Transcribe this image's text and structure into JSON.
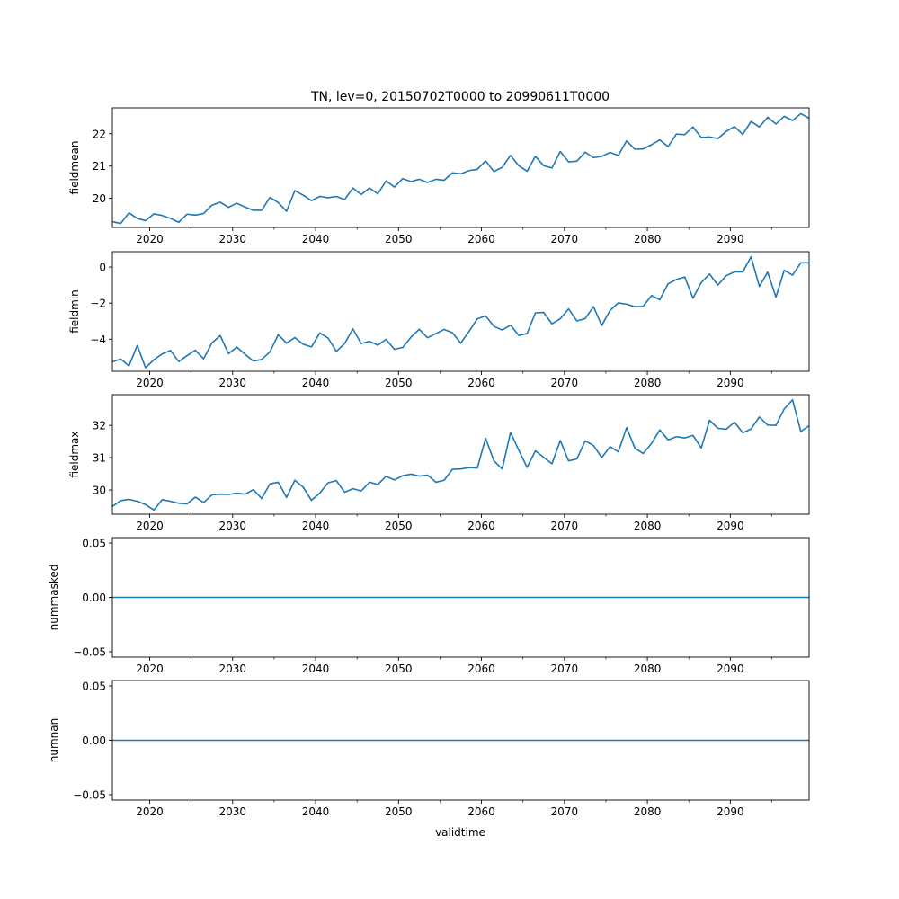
{
  "title": "TN, lev=0, 20150702T0000 to 20990611T0000",
  "xlabel": "validtime",
  "colors": {
    "line": "#1f77b4",
    "axis": "#000000",
    "background": "#ffffff"
  },
  "chart_data": [
    {
      "type": "line",
      "ylabel": "fieldmean",
      "xlim": [
        2015.5,
        2099.5
      ],
      "ylim": [
        19.1,
        22.8
      ],
      "xticks": [
        2020,
        2030,
        2040,
        2050,
        2060,
        2070,
        2080,
        2090
      ],
      "xticklabels": [
        "2020",
        "2030",
        "2040",
        "2050",
        "2060",
        "2070",
        "2080",
        "2090"
      ],
      "yticks": [
        20,
        21,
        22
      ],
      "yticklabels": [
        "20",
        "21",
        "22"
      ],
      "x_start": 2015.5,
      "values": [
        19.28,
        19.22,
        19.55,
        19.38,
        19.31,
        19.52,
        19.47,
        19.38,
        19.26,
        19.51,
        19.48,
        19.53,
        19.79,
        19.88,
        19.72,
        19.85,
        19.73,
        19.63,
        19.63,
        20.03,
        19.87,
        19.6,
        20.24,
        20.1,
        19.93,
        20.06,
        20.02,
        20.06,
        19.96,
        20.32,
        20.12,
        20.32,
        20.14,
        20.54,
        20.35,
        20.61,
        20.52,
        20.59,
        20.49,
        20.59,
        20.56,
        20.79,
        20.76,
        20.86,
        20.9,
        21.16,
        20.83,
        20.96,
        21.33,
        21.01,
        20.84,
        21.3,
        21.01,
        20.94,
        21.45,
        21.13,
        21.15,
        21.43,
        21.26,
        21.3,
        21.42,
        21.33,
        21.78,
        21.52,
        21.53,
        21.66,
        21.81,
        21.6,
        21.99,
        21.97,
        22.21,
        21.88,
        21.9,
        21.85,
        22.07,
        22.22,
        21.98,
        22.38,
        22.21,
        22.51,
        22.3,
        22.54,
        22.41,
        22.62,
        22.48
      ]
    },
    {
      "type": "line",
      "ylabel": "fieldmin",
      "xlim": [
        2015.5,
        2099.5
      ],
      "ylim": [
        -5.78,
        0.85
      ],
      "xticks": [
        2020,
        2030,
        2040,
        2050,
        2060,
        2070,
        2080,
        2090
      ],
      "xticklabels": [
        "2020",
        "2030",
        "2040",
        "2050",
        "2060",
        "2070",
        "2080",
        "2090"
      ],
      "yticks": [
        -4,
        -2,
        0
      ],
      "yticklabels": [
        "−4",
        "−2",
        "0"
      ],
      "x_start": 2015.5,
      "values": [
        -5.26,
        -5.1,
        -5.48,
        -4.35,
        -5.58,
        -5.14,
        -4.82,
        -4.62,
        -5.24,
        -4.91,
        -4.61,
        -5.09,
        -4.21,
        -3.8,
        -4.8,
        -4.44,
        -4.84,
        -5.21,
        -5.13,
        -4.7,
        -3.75,
        -4.22,
        -3.91,
        -4.28,
        -4.43,
        -3.66,
        -3.93,
        -4.68,
        -4.24,
        -3.43,
        -4.24,
        -4.12,
        -4.33,
        -4.01,
        -4.56,
        -4.46,
        -3.89,
        -3.45,
        -3.92,
        -3.69,
        -3.46,
        -3.64,
        -4.22,
        -3.57,
        -2.87,
        -2.71,
        -3.29,
        -3.49,
        -3.22,
        -3.79,
        -3.69,
        -2.54,
        -2.52,
        -3.15,
        -2.87,
        -2.32,
        -2.99,
        -2.86,
        -2.2,
        -3.24,
        -2.41,
        -1.99,
        -2.06,
        -2.2,
        -2.18,
        -1.58,
        -1.81,
        -0.93,
        -0.69,
        -0.55,
        -1.73,
        -0.86,
        -0.39,
        -1.0,
        -0.48,
        -0.27,
        -0.27,
        0.57,
        -1.08,
        -0.28,
        -1.67,
        -0.18,
        -0.45,
        0.24,
        0.23
      ]
    },
    {
      "type": "line",
      "ylabel": "fieldmax",
      "xlim": [
        2015.5,
        2099.5
      ],
      "ylim": [
        29.25,
        32.95
      ],
      "xticks": [
        2020,
        2030,
        2040,
        2050,
        2060,
        2070,
        2080,
        2090
      ],
      "xticklabels": [
        "2020",
        "2030",
        "2040",
        "2050",
        "2060",
        "2070",
        "2080",
        "2090"
      ],
      "yticks": [
        30,
        31,
        32
      ],
      "yticklabels": [
        "30",
        "31",
        "32"
      ],
      "x_start": 2015.5,
      "values": [
        29.49,
        29.67,
        29.71,
        29.65,
        29.55,
        29.38,
        29.7,
        29.65,
        29.59,
        29.57,
        29.78,
        29.61,
        29.85,
        29.87,
        29.86,
        29.9,
        29.87,
        30.01,
        29.74,
        30.19,
        30.24,
        29.77,
        30.3,
        30.09,
        29.68,
        29.9,
        30.22,
        30.29,
        29.93,
        30.04,
        29.97,
        30.24,
        30.17,
        30.42,
        30.31,
        30.44,
        30.49,
        30.43,
        30.46,
        30.24,
        30.3,
        30.64,
        30.65,
        30.69,
        30.68,
        31.6,
        30.9,
        30.65,
        31.78,
        31.23,
        30.7,
        31.21,
        31.01,
        30.81,
        31.53,
        30.9,
        30.96,
        31.52,
        31.38,
        31.0,
        31.34,
        31.18,
        31.93,
        31.29,
        31.13,
        31.44,
        31.86,
        31.55,
        31.65,
        31.61,
        31.69,
        31.3,
        32.16,
        31.91,
        31.88,
        32.1,
        31.77,
        31.89,
        32.26,
        32.01,
        32.0,
        32.51,
        32.79,
        31.81,
        31.99
      ]
    },
    {
      "type": "line",
      "ylabel": "nummasked",
      "xlim": [
        2015.5,
        2099.5
      ],
      "ylim": [
        -0.055,
        0.055
      ],
      "xticks": [
        2020,
        2030,
        2040,
        2050,
        2060,
        2070,
        2080,
        2090
      ],
      "xticklabels": [
        "2020",
        "2030",
        "2040",
        "2050",
        "2060",
        "2070",
        "2080",
        "2090"
      ],
      "yticks": [
        -0.05,
        0.0,
        0.05
      ],
      "yticklabels": [
        "−0.05",
        "0.00",
        "0.05"
      ],
      "x": [
        2015.5,
        2099.5
      ],
      "values": [
        0,
        0
      ]
    },
    {
      "type": "line",
      "ylabel": "numnan",
      "xlim": [
        2015.5,
        2099.5
      ],
      "ylim": [
        -0.055,
        0.055
      ],
      "xticks": [
        2020,
        2030,
        2040,
        2050,
        2060,
        2070,
        2080,
        2090
      ],
      "xticklabels": [
        "2020",
        "2030",
        "2040",
        "2050",
        "2060",
        "2070",
        "2080",
        "2090"
      ],
      "yticks": [
        -0.05,
        0.0,
        0.05
      ],
      "yticklabels": [
        "−0.05",
        "0.00",
        "0.05"
      ],
      "x": [
        2015.5,
        2099.5
      ],
      "values": [
        0,
        0
      ]
    }
  ]
}
